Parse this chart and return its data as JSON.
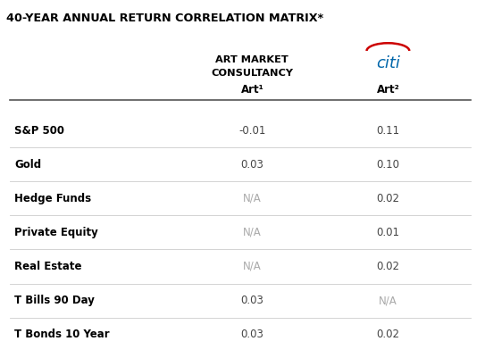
{
  "title": "40-YEAR ANNUAL RETURN CORRELATION MATRIX*",
  "title_bg": "#ffff00",
  "title_fontsize": 9.5,
  "col1_header_line1": "ART MARKET",
  "col1_header_line2": "CONSULTANCY",
  "col1_subheader": "Art¹",
  "col2_header": "citi",
  "col2_subheader": "Art²",
  "rows": [
    {
      "label": "S&P 500",
      "col1": "-0.01",
      "col2": "0.11"
    },
    {
      "label": "Gold",
      "col1": "0.03",
      "col2": "0.10"
    },
    {
      "label": "Hedge Funds",
      "col1": "N/A",
      "col2": "0.02"
    },
    {
      "label": "Private Equity",
      "col1": "N/A",
      "col2": "0.01"
    },
    {
      "label": "Real Estate",
      "col1": "N/A",
      "col2": "0.02"
    },
    {
      "label": "T Bills 90 Day",
      "col1": "0.03",
      "col2": "N/A"
    },
    {
      "label": "T Bonds 10 Year",
      "col1": "0.03",
      "col2": "0.02"
    }
  ],
  "na_color": "#aaaaaa",
  "value_color": "#444444",
  "label_color": "#000000",
  "bg_color": "#ffffff",
  "header_color": "#000000",
  "citi_blue": "#0066aa",
  "citi_red": "#cc0000",
  "row_divider_color": "#cccccc",
  "header_divider_color": "#555555"
}
